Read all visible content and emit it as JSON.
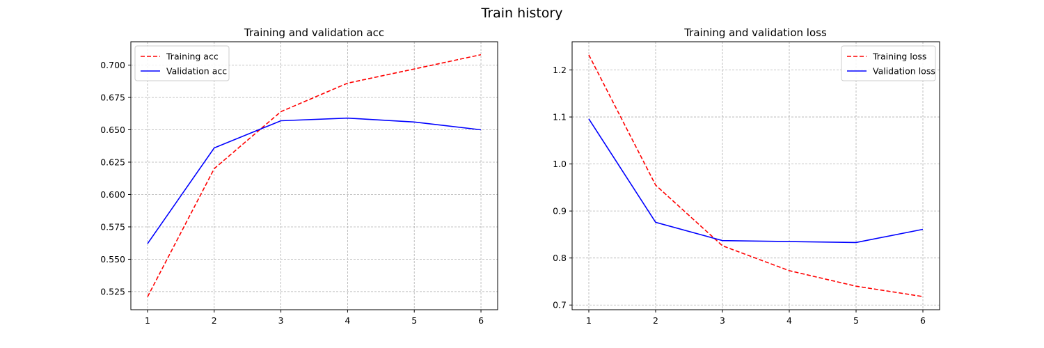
{
  "figure": {
    "suptitle": "Train history"
  },
  "chart_data": [
    {
      "type": "line",
      "title": "Training and validation acc",
      "xlabel": "",
      "ylabel": "",
      "x": [
        1,
        2,
        3,
        4,
        5,
        6
      ],
      "xticks": [
        "1",
        "2",
        "3",
        "4",
        "5",
        "6"
      ],
      "yticks": [
        "0.525",
        "0.550",
        "0.575",
        "0.600",
        "0.625",
        "0.650",
        "0.675",
        "0.700"
      ],
      "ytick_values": [
        0.525,
        0.55,
        0.575,
        0.6,
        0.625,
        0.65,
        0.675,
        0.7
      ],
      "xlim": [
        0.75,
        6.25
      ],
      "ylim": [
        0.511,
        0.718
      ],
      "grid": true,
      "legend_position": "upper left",
      "series": [
        {
          "name": "Training acc",
          "color": "#ff0000",
          "style": "dashed",
          "values": [
            0.521,
            0.62,
            0.664,
            0.686,
            0.697,
            0.708
          ]
        },
        {
          "name": "Validation acc",
          "color": "#0000ff",
          "style": "solid",
          "values": [
            0.562,
            0.636,
            0.657,
            0.659,
            0.656,
            0.65
          ]
        }
      ]
    },
    {
      "type": "line",
      "title": "Training and validation loss",
      "xlabel": "",
      "ylabel": "",
      "x": [
        1,
        2,
        3,
        4,
        5,
        6
      ],
      "xticks": [
        "1",
        "2",
        "3",
        "4",
        "5",
        "6"
      ],
      "yticks": [
        "0.7",
        "0.8",
        "0.9",
        "1.0",
        "1.1",
        "1.2"
      ],
      "ytick_values": [
        0.7,
        0.8,
        0.9,
        1.0,
        1.1,
        1.2
      ],
      "xlim": [
        0.75,
        6.25
      ],
      "ylim": [
        0.69,
        1.26
      ],
      "grid": true,
      "legend_position": "upper right",
      "series": [
        {
          "name": "Training loss",
          "color": "#ff0000",
          "style": "dashed",
          "values": [
            1.232,
            0.955,
            0.826,
            0.773,
            0.74,
            0.718
          ]
        },
        {
          "name": "Validation loss",
          "color": "#0000ff",
          "style": "solid",
          "values": [
            1.096,
            0.876,
            0.837,
            0.835,
            0.833,
            0.861
          ]
        }
      ]
    }
  ]
}
